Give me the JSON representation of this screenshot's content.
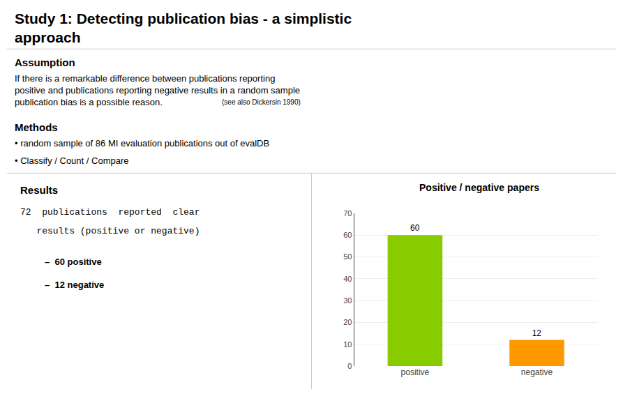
{
  "chart_data": {
    "type": "bar",
    "title": "Positive / negative papers",
    "annotations": [
      "Study 1: Detecting publication bias - a simplistic",
      "approach",
      "Assumption",
      "If there is a remarkable difference between publications reporting\npositive and publications reporting negative results in a random sample\npublication bias is a possible reason.",
      "(see also Dickersin 1990)",
      "Methods",
      "• random sample of 86 MI evaluation publications out of evalDB",
      "• Classify / Count / Compare",
      "Results",
      "72  publications  reported  clear",
      "   results (positive or negative)",
      "–  60 positive",
      "–  12 negative"
    ],
    "categories": [
      "positive",
      "negative"
    ],
    "values": [
      60,
      12
    ],
    "colors": [
      "#88cc00",
      "#ff9900"
    ],
    "ylim": [
      0,
      70
    ],
    "yticks": [
      0,
      10,
      20,
      30,
      40,
      50,
      60,
      70
    ],
    "grid": true,
    "data_labels": true
  }
}
